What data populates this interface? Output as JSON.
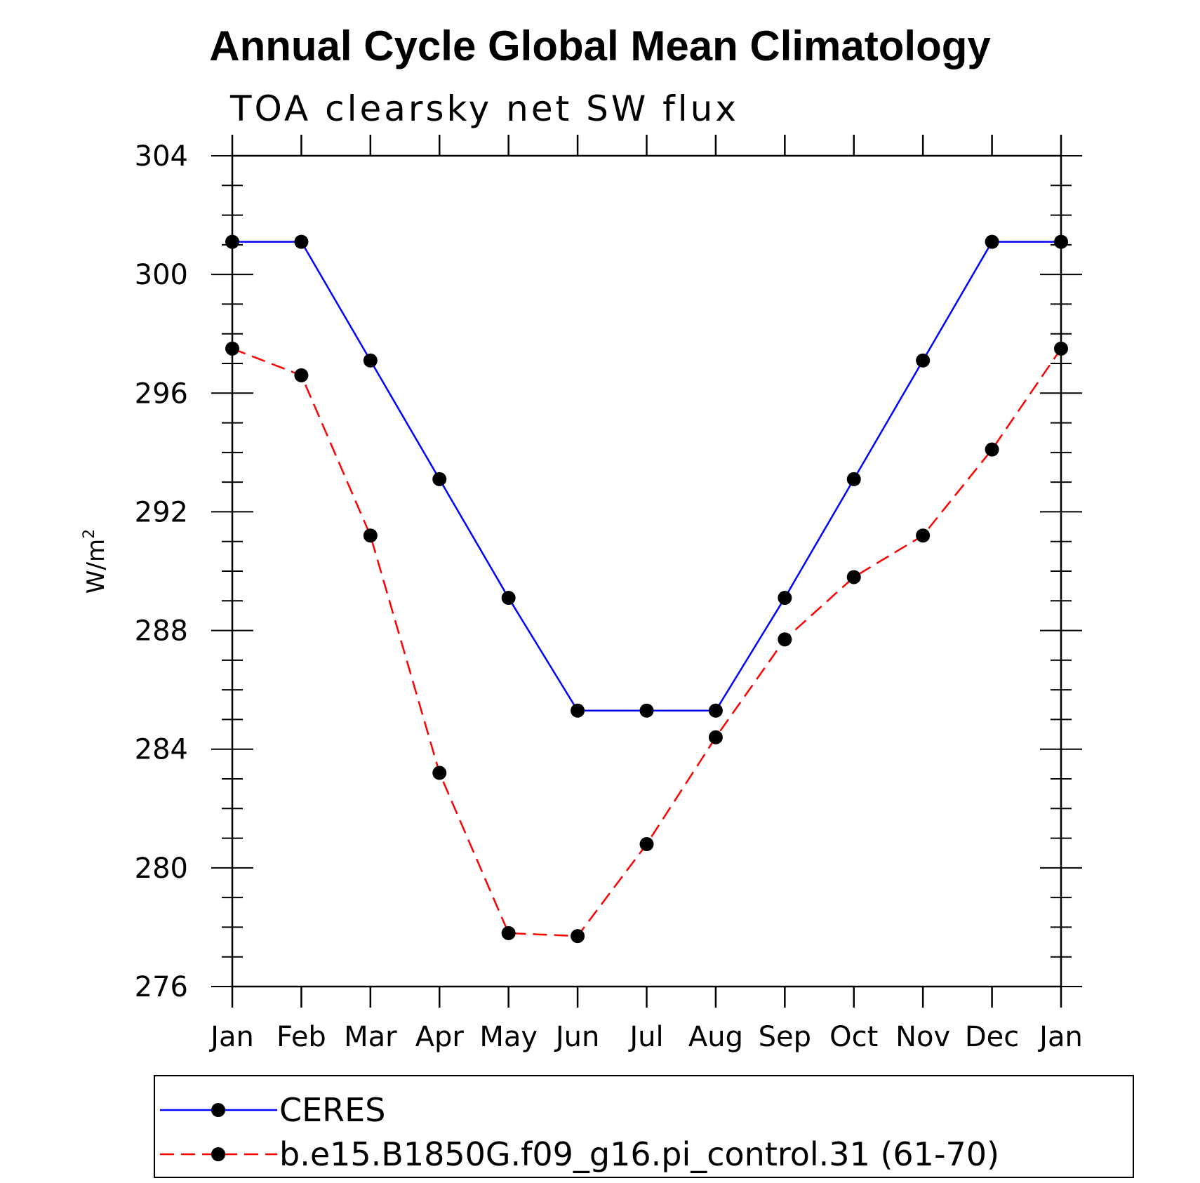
{
  "chart_data": {
    "type": "line",
    "title": "Annual Cycle Global Mean Climatology",
    "subtitle": "TOA clearsky net SW flux",
    "ylabel": "W/m",
    "ylabel_superscript": "2",
    "xlabel": "",
    "categories": [
      "Jan",
      "Feb",
      "Mar",
      "Apr",
      "May",
      "Jun",
      "Jul",
      "Aug",
      "Sep",
      "Oct",
      "Nov",
      "Dec",
      "Jan"
    ],
    "ylim": [
      276,
      304
    ],
    "yticks": [
      276,
      280,
      284,
      288,
      292,
      296,
      300,
      304
    ],
    "grid": false,
    "legend_position": "bottom",
    "series": [
      {
        "name": "CERES",
        "color": "#0000ff",
        "dash": "solid",
        "values": [
          301.1,
          301.1,
          297.1,
          293.1,
          289.1,
          285.3,
          285.3,
          285.3,
          289.1,
          293.1,
          297.1,
          301.1,
          301.1
        ]
      },
      {
        "name": "b.e15.B1850G.f09_g16.pi_control.31 (61-70)",
        "color": "#ff0000",
        "dash": "dashed",
        "values": [
          297.5,
          296.6,
          291.2,
          283.2,
          277.8,
          277.7,
          280.8,
          284.4,
          287.7,
          289.8,
          291.2,
          294.1,
          297.5
        ]
      }
    ]
  }
}
